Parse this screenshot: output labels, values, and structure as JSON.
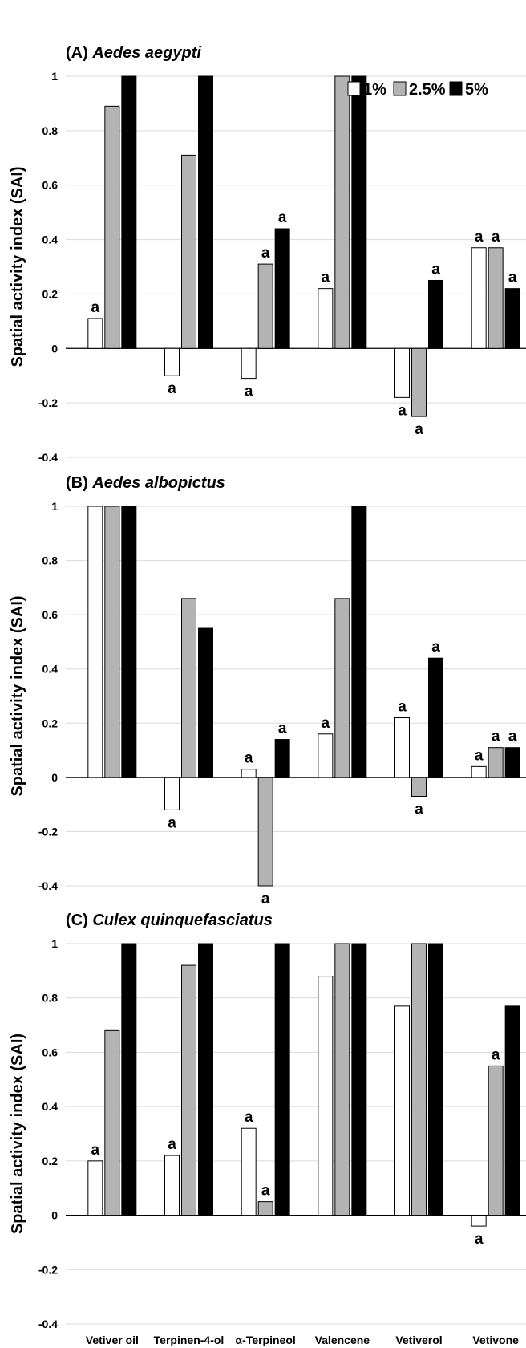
{
  "chart_data": [
    {
      "type": "bar",
      "title_prefix": "(A)",
      "title_species": "Aedes aegypti",
      "ylabel": "Spatial activity index (SAI)",
      "ylim": [
        -0.4,
        1
      ],
      "yticks": [
        "-0.4",
        "-0.2",
        "0",
        "0.2",
        "0.4",
        "0.6",
        "0.8",
        "1"
      ],
      "grid": true,
      "legend_position": "top-right",
      "categories": [
        "Vetiver oil",
        "Terpinen-4-ol",
        "α-Terpineol",
        "Valencene",
        "Vetiverol",
        "Vetivone"
      ],
      "series": [
        {
          "name": "1%",
          "values": [
            0.11,
            -0.1,
            -0.11,
            0.22,
            -0.18,
            0.37
          ]
        },
        {
          "name": "2.5%",
          "values": [
            0.89,
            0.71,
            0.31,
            1.0,
            -0.25,
            0.37
          ]
        },
        {
          "name": "5%",
          "values": [
            1.0,
            1.0,
            0.44,
            1.0,
            0.25,
            0.22
          ]
        }
      ],
      "annotations": [
        [
          "a",
          null,
          null
        ],
        [
          "a",
          null,
          null
        ],
        [
          "a",
          "a",
          "a"
        ],
        [
          "a",
          null,
          null
        ],
        [
          "a",
          "a",
          "a"
        ],
        [
          "a",
          "a",
          "a"
        ]
      ]
    },
    {
      "type": "bar",
      "title_prefix": "(B)",
      "title_species": "Aedes albopictus",
      "ylabel": "Spatial activity index (SAI)",
      "ylim": [
        -0.4,
        1
      ],
      "yticks": [
        "-0.4",
        "-0.2",
        "0",
        "0.2",
        "0.4",
        "0.6",
        "0.8",
        "1"
      ],
      "grid": true,
      "categories": [
        "Vetiver oil",
        "Terpinen-4-ol",
        "α-Terpineol",
        "Valencene",
        "Vetiverol",
        "Vetivone"
      ],
      "series": [
        {
          "name": "1%",
          "values": [
            1.0,
            -0.12,
            0.03,
            0.16,
            0.22,
            0.04
          ]
        },
        {
          "name": "2.5%",
          "values": [
            1.0,
            0.66,
            -0.4,
            0.66,
            -0.07,
            0.11
          ]
        },
        {
          "name": "5%",
          "values": [
            1.0,
            0.55,
            0.14,
            1.0,
            0.44,
            0.11
          ]
        }
      ],
      "annotations": [
        [
          null,
          null,
          null
        ],
        [
          "a",
          null,
          null
        ],
        [
          "a",
          "a",
          "a"
        ],
        [
          "a",
          null,
          null
        ],
        [
          "a",
          "a",
          "a"
        ],
        [
          "a",
          "a",
          "a"
        ]
      ]
    },
    {
      "type": "bar",
      "title_prefix": "(C)",
      "title_species": "Culex quinquefasciatus",
      "ylabel": "Spatial activity index (SAI)",
      "ylim": [
        -0.4,
        1
      ],
      "yticks": [
        "-0.4",
        "-0.2",
        "0",
        "0.2",
        "0.4",
        "0.6",
        "0.8",
        "1"
      ],
      "grid": true,
      "categories": [
        "Vetiver oil",
        "Terpinen-4-ol",
        "α-Terpineol",
        "Valencene",
        "Vetiverol",
        "Vetivone"
      ],
      "series": [
        {
          "name": "1%",
          "values": [
            0.2,
            0.22,
            0.32,
            0.88,
            0.77,
            -0.04
          ]
        },
        {
          "name": "2.5%",
          "values": [
            0.68,
            0.92,
            0.05,
            1.0,
            1.0,
            0.55
          ]
        },
        {
          "name": "5%",
          "values": [
            1.0,
            1.0,
            1.0,
            1.0,
            1.0,
            0.77
          ]
        }
      ],
      "annotations": [
        [
          "a",
          null,
          null
        ],
        [
          "a",
          null,
          null
        ],
        [
          "a",
          "a",
          null
        ],
        [
          null,
          null,
          null
        ],
        [
          null,
          null,
          null
        ],
        [
          "a",
          "a",
          null
        ]
      ]
    }
  ],
  "legend": {
    "items": [
      {
        "label": "1%",
        "color": "#ffffff"
      },
      {
        "label": "2.5%",
        "color": "#b3b3b3"
      },
      {
        "label": "5%",
        "color": "#000000"
      }
    ]
  },
  "colors": {
    "series": [
      "#ffffff",
      "#b3b3b3",
      "#000000"
    ],
    "bar_stroke": "#000000",
    "grid": "#d9d9d9"
  }
}
